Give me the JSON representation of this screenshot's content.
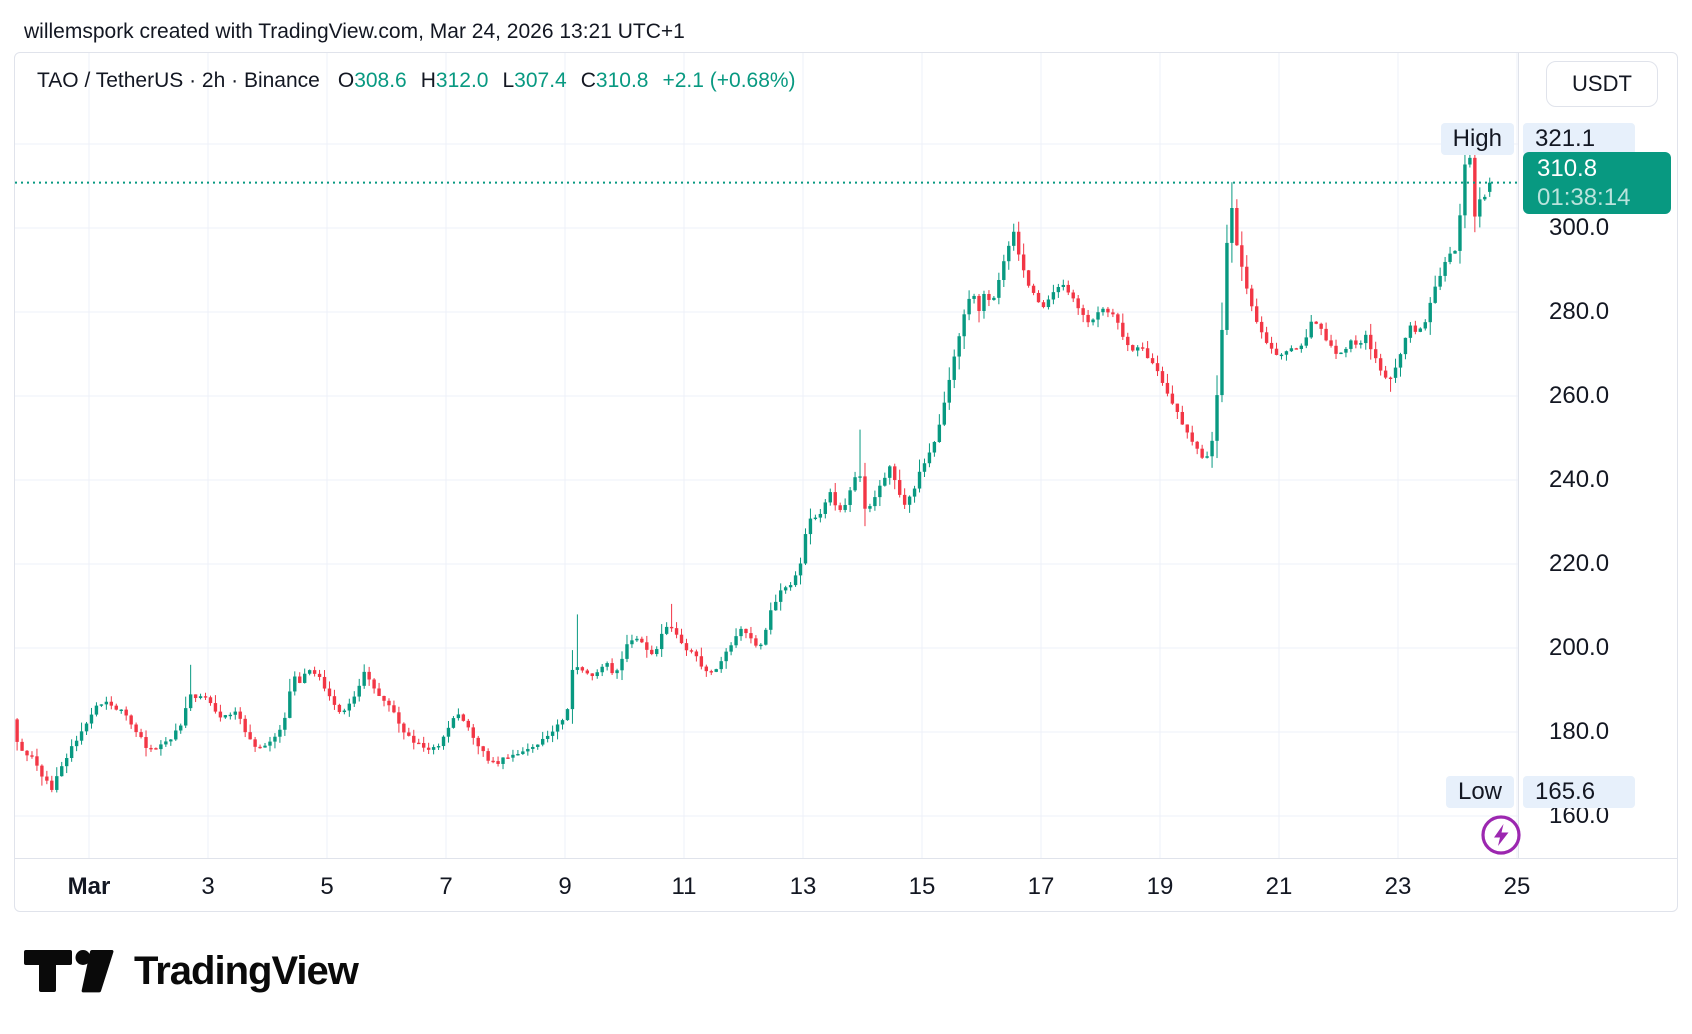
{
  "attribution": "willemspork created with TradingView.com, Mar 24, 2026 13:21 UTC+1",
  "header": {
    "title": "TAO / TetherUS · 2h · Binance",
    "ohlc": [
      {
        "k": "O",
        "v": "308.6"
      },
      {
        "k": "H",
        "v": "312.0"
      },
      {
        "k": "L",
        "v": "307.4"
      },
      {
        "k": "C",
        "v": "310.8"
      }
    ],
    "change": "+2.1 (+0.68%)"
  },
  "currency_button": "USDT",
  "price_scale": {
    "high_label": "High",
    "high_value": "321.1",
    "low_label": "Low",
    "low_value": "165.6",
    "last_price": "310.8",
    "countdown": "01:38:14",
    "ticks": [
      {
        "label": "300.0",
        "price": 300
      },
      {
        "label": "280.0",
        "price": 280
      },
      {
        "label": "260.0",
        "price": 260
      },
      {
        "label": "240.0",
        "price": 240
      },
      {
        "label": "220.0",
        "price": 220
      },
      {
        "label": "200.0",
        "price": 200
      },
      {
        "label": "180.0",
        "price": 180
      },
      {
        "label": "160.0",
        "price": 160
      }
    ]
  },
  "time_scale": [
    {
      "label": "Mar",
      "day": 1,
      "bold": true
    },
    {
      "label": "3",
      "day": 3
    },
    {
      "label": "5",
      "day": 5
    },
    {
      "label": "7",
      "day": 7
    },
    {
      "label": "9",
      "day": 9
    },
    {
      "label": "11",
      "day": 11
    },
    {
      "label": "13",
      "day": 13
    },
    {
      "label": "15",
      "day": 15
    },
    {
      "label": "17",
      "day": 17
    },
    {
      "label": "19",
      "day": 19
    },
    {
      "label": "21",
      "day": 21
    },
    {
      "label": "23",
      "day": 23
    },
    {
      "label": "25",
      "day": 25
    }
  ],
  "logo_text": "TradingView",
  "colors": {
    "up": "#089981",
    "down": "#f23645",
    "price_line": "#089981",
    "grid": "#eef1f8",
    "border": "#e0e3eb",
    "text": "#131722",
    "badge_bg": "#e7f0fb",
    "lightning": "#9c27b0"
  },
  "chart_data": {
    "type": "candlestick",
    "title": "TAO / TetherUS · 2h · Binance",
    "symbol": "TAO/USDT",
    "interval": "2h",
    "exchange": "Binance",
    "current_price": 310.8,
    "countdown": "01:38:14",
    "visible_high": 321.1,
    "visible_low": 165.6,
    "last_candle": {
      "open": 308.6,
      "high": 312.0,
      "low": 307.4,
      "close": 310.8,
      "change": 2.1,
      "change_pct": 0.68
    },
    "y_axis": {
      "min": 150,
      "max": 341.7,
      "ticks": [
        160,
        180,
        200,
        220,
        240,
        260,
        280,
        300,
        320
      ],
      "grid": true
    },
    "x_axis": {
      "unit": "day of March 2026",
      "start_day": -0.25,
      "end_day": 24.583,
      "tick_days": [
        1,
        3,
        5,
        7,
        9,
        11,
        13,
        15,
        17,
        19,
        21,
        23,
        25
      ]
    },
    "candle_interval_days": 0.0833333,
    "price_path": [
      [
        -0.25,
        183
      ],
      [
        -0.17,
        178
      ],
      [
        -0.05,
        175
      ],
      [
        0.1,
        173.5
      ],
      [
        0.2,
        171
      ],
      [
        0.33,
        168
      ],
      [
        0.42,
        166.5
      ],
      [
        0.5,
        169
      ],
      [
        0.6,
        172
      ],
      [
        0.7,
        175.5
      ],
      [
        0.8,
        177
      ],
      [
        0.92,
        180
      ],
      [
        1.05,
        184
      ],
      [
        1.2,
        186.5
      ],
      [
        1.35,
        187.5
      ],
      [
        1.5,
        185.5
      ],
      [
        1.62,
        184.5
      ],
      [
        1.75,
        182
      ],
      [
        1.88,
        179.5
      ],
      [
        2.0,
        176.5
      ],
      [
        2.12,
        175.5
      ],
      [
        2.25,
        177
      ],
      [
        2.4,
        178.5
      ],
      [
        2.55,
        180.5
      ],
      [
        2.65,
        184
      ],
      [
        2.72,
        189.5
      ],
      [
        2.85,
        188
      ],
      [
        2.95,
        189
      ],
      [
        3.1,
        186.5
      ],
      [
        3.25,
        183
      ],
      [
        3.4,
        184
      ],
      [
        3.55,
        184.5
      ],
      [
        3.68,
        180
      ],
      [
        3.8,
        176.5
      ],
      [
        3.95,
        176
      ],
      [
        4.1,
        177.5
      ],
      [
        4.25,
        180
      ],
      [
        4.38,
        186
      ],
      [
        4.45,
        193.5
      ],
      [
        4.58,
        191.5
      ],
      [
        4.72,
        195.5
      ],
      [
        4.88,
        193.5
      ],
      [
        5.0,
        190.5
      ],
      [
        5.12,
        187
      ],
      [
        5.25,
        185
      ],
      [
        5.4,
        186
      ],
      [
        5.55,
        190
      ],
      [
        5.68,
        194.5
      ],
      [
        5.8,
        190.5
      ],
      [
        5.95,
        188
      ],
      [
        6.1,
        186.5
      ],
      [
        6.25,
        182
      ],
      [
        6.42,
        178.5
      ],
      [
        6.58,
        177
      ],
      [
        6.72,
        175.5
      ],
      [
        6.9,
        176.5
      ],
      [
        7.05,
        180.5
      ],
      [
        7.2,
        184.5
      ],
      [
        7.35,
        182.5
      ],
      [
        7.5,
        178.5
      ],
      [
        7.65,
        175.5
      ],
      [
        7.8,
        172.5
      ],
      [
        7.95,
        173
      ],
      [
        8.1,
        174.5
      ],
      [
        8.3,
        175.5
      ],
      [
        8.5,
        176.5
      ],
      [
        8.7,
        178.5
      ],
      [
        8.88,
        181
      ],
      [
        9.0,
        183
      ],
      [
        9.08,
        185
      ],
      [
        9.16,
        194.5
      ],
      [
        9.3,
        195.5
      ],
      [
        9.45,
        193.5
      ],
      [
        9.6,
        194.5
      ],
      [
        9.75,
        196
      ],
      [
        9.88,
        193.5
      ],
      [
        10.0,
        197.5
      ],
      [
        10.1,
        201.5
      ],
      [
        10.25,
        202.5
      ],
      [
        10.4,
        199.5
      ],
      [
        10.55,
        198
      ],
      [
        10.68,
        203.5
      ],
      [
        10.78,
        206
      ],
      [
        10.9,
        204
      ],
      [
        11.0,
        201
      ],
      [
        11.12,
        199.5
      ],
      [
        11.25,
        197.5
      ],
      [
        11.38,
        195
      ],
      [
        11.5,
        194
      ],
      [
        11.65,
        196
      ],
      [
        11.78,
        199.5
      ],
      [
        11.9,
        203
      ],
      [
        12.05,
        204.5
      ],
      [
        12.18,
        202.5
      ],
      [
        12.28,
        199.5
      ],
      [
        12.4,
        203.5
      ],
      [
        12.52,
        210
      ],
      [
        12.65,
        213
      ],
      [
        12.78,
        214.5
      ],
      [
        12.9,
        216.5
      ],
      [
        13.0,
        220
      ],
      [
        13.08,
        226.5
      ],
      [
        13.18,
        231.5
      ],
      [
        13.3,
        230.5
      ],
      [
        13.42,
        234.5
      ],
      [
        13.52,
        237.5
      ],
      [
        13.62,
        232.5
      ],
      [
        13.75,
        234
      ],
      [
        13.88,
        239.5
      ],
      [
        13.98,
        243
      ],
      [
        14.1,
        232
      ],
      [
        14.22,
        235
      ],
      [
        14.35,
        239.5
      ],
      [
        14.5,
        243
      ],
      [
        14.62,
        238
      ],
      [
        14.75,
        234.5
      ],
      [
        14.88,
        237
      ],
      [
        15.0,
        241.5
      ],
      [
        15.12,
        244.5
      ],
      [
        15.25,
        249
      ],
      [
        15.4,
        257
      ],
      [
        15.55,
        267
      ],
      [
        15.68,
        275
      ],
      [
        15.8,
        282
      ],
      [
        15.9,
        284.5
      ],
      [
        16.0,
        280.5
      ],
      [
        16.1,
        285.5
      ],
      [
        16.2,
        281.5
      ],
      [
        16.32,
        287
      ],
      [
        16.45,
        293.5
      ],
      [
        16.58,
        299.5
      ],
      [
        16.68,
        293
      ],
      [
        16.8,
        287
      ],
      [
        16.95,
        283.5
      ],
      [
        17.1,
        281
      ],
      [
        17.25,
        284.5
      ],
      [
        17.4,
        286.5
      ],
      [
        17.55,
        284
      ],
      [
        17.7,
        280.5
      ],
      [
        17.85,
        277.5
      ],
      [
        18.0,
        279.5
      ],
      [
        18.12,
        281
      ],
      [
        18.28,
        278.5
      ],
      [
        18.42,
        274.5
      ],
      [
        18.55,
        270.5
      ],
      [
        18.7,
        272.5
      ],
      [
        18.85,
        269
      ],
      [
        19.0,
        265.5
      ],
      [
        19.12,
        262
      ],
      [
        19.25,
        258.5
      ],
      [
        19.38,
        254.5
      ],
      [
        19.52,
        250.5
      ],
      [
        19.65,
        247.5
      ],
      [
        19.78,
        245
      ],
      [
        19.88,
        247
      ],
      [
        19.95,
        252
      ],
      [
        20.05,
        268
      ],
      [
        20.15,
        292
      ],
      [
        20.22,
        308.5
      ],
      [
        20.32,
        297
      ],
      [
        20.42,
        290
      ],
      [
        20.55,
        283
      ],
      [
        20.68,
        277.5
      ],
      [
        20.8,
        273.5
      ],
      [
        20.95,
        270.5
      ],
      [
        21.1,
        269.5
      ],
      [
        21.22,
        272
      ],
      [
        21.35,
        270.5
      ],
      [
        21.5,
        274.5
      ],
      [
        21.62,
        278.5
      ],
      [
        21.75,
        275.5
      ],
      [
        21.88,
        272
      ],
      [
        22.0,
        270.5
      ],
      [
        22.12,
        269.5
      ],
      [
        22.25,
        273.5
      ],
      [
        22.38,
        272
      ],
      [
        22.5,
        275
      ],
      [
        22.62,
        270
      ],
      [
        22.75,
        266
      ],
      [
        22.88,
        263.5
      ],
      [
        23.0,
        266.5
      ],
      [
        23.12,
        272
      ],
      [
        23.25,
        276.5
      ],
      [
        23.38,
        274.5
      ],
      [
        23.5,
        278
      ],
      [
        23.62,
        284
      ],
      [
        23.75,
        288.5
      ],
      [
        23.88,
        294
      ],
      [
        23.98,
        292.5
      ],
      [
        24.08,
        302
      ],
      [
        24.16,
        315
      ],
      [
        24.24,
        318.5
      ],
      [
        24.33,
        303
      ],
      [
        24.42,
        307.5
      ],
      [
        24.5,
        307
      ],
      [
        24.583,
        310.8
      ]
    ],
    "wick_extremes": [
      [
        0.42,
        "low",
        165.6
      ],
      [
        2.72,
        "high",
        196.0
      ],
      [
        5.68,
        "high",
        195.5
      ],
      [
        9.2,
        "high",
        208.0
      ],
      [
        10.78,
        "high",
        210.5
      ],
      [
        13.98,
        "high",
        252.0
      ],
      [
        16.6,
        "high",
        301.5
      ],
      [
        19.85,
        "low",
        242.9
      ],
      [
        20.22,
        "high",
        310.9
      ],
      [
        22.88,
        "low",
        261.0
      ],
      [
        24.2,
        "high",
        321.1
      ],
      [
        24.3,
        "low",
        299.0
      ]
    ]
  }
}
